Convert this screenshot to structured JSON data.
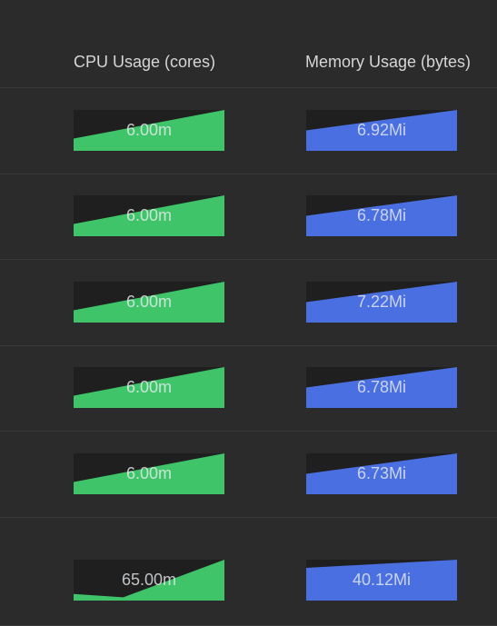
{
  "header": {
    "cpu_title": "CPU Usage (cores)",
    "memory_title": "Memory Usage (bytes)"
  },
  "colors": {
    "background": "#2b2b2b",
    "sparkline_bg": "#1f1f1f",
    "cpu": "#3fc46a",
    "memory": "#4a6fe0"
  },
  "rows": [
    {
      "cpu": {
        "label": "6.00m",
        "trend": [
          0.3,
          1.0
        ]
      },
      "memory": {
        "label": "6.92Mi",
        "trend": [
          0.5,
          1.0
        ]
      }
    },
    {
      "cpu": {
        "label": "6.00m",
        "trend": [
          0.3,
          1.0
        ]
      },
      "memory": {
        "label": "6.78Mi",
        "trend": [
          0.5,
          1.0
        ]
      }
    },
    {
      "cpu": {
        "label": "6.00m",
        "trend": [
          0.3,
          1.0
        ]
      },
      "memory": {
        "label": "7.22Mi",
        "trend": [
          0.5,
          1.0
        ]
      }
    },
    {
      "cpu": {
        "label": "6.00m",
        "trend": [
          0.3,
          1.0
        ]
      },
      "memory": {
        "label": "6.78Mi",
        "trend": [
          0.5,
          1.0
        ]
      }
    },
    {
      "cpu": {
        "label": "6.00m",
        "trend": [
          0.3,
          1.0
        ]
      },
      "memory": {
        "label": "6.73Mi",
        "trend": [
          0.5,
          1.0
        ]
      }
    },
    {
      "cpu": {
        "label": "65.00m",
        "trend": [
          0.16,
          0.08,
          1.0
        ]
      },
      "memory": {
        "label": "40.12Mi",
        "trend": [
          0.8,
          1.0
        ]
      }
    }
  ]
}
